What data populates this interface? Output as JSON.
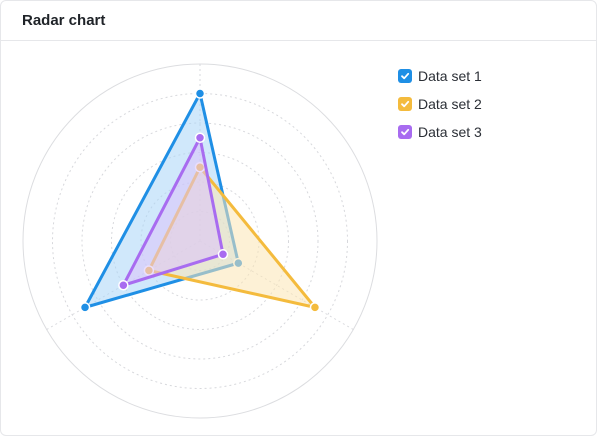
{
  "card": {
    "title": "Radar chart"
  },
  "chart_data": {
    "type": "radar",
    "axes": [
      "",
      "",
      ""
    ],
    "rmax": 6,
    "rings": [
      1,
      2,
      3,
      4,
      5,
      6
    ],
    "grid": true,
    "legend_position": "top-right",
    "series": [
      {
        "name": "Data set 1",
        "values": [
          5,
          1.5,
          4.5
        ],
        "color": "#1f8fe5",
        "fill": "#a9d6f8"
      },
      {
        "name": "Data set 2",
        "values": [
          2.5,
          4.5,
          2.0
        ],
        "color": "#f4bb3d",
        "fill": "#fbe6b4"
      },
      {
        "name": "Data set 3",
        "values": [
          3.5,
          0.9,
          3.0
        ],
        "color": "#a86cf0",
        "fill": "#dac2fa"
      }
    ]
  }
}
